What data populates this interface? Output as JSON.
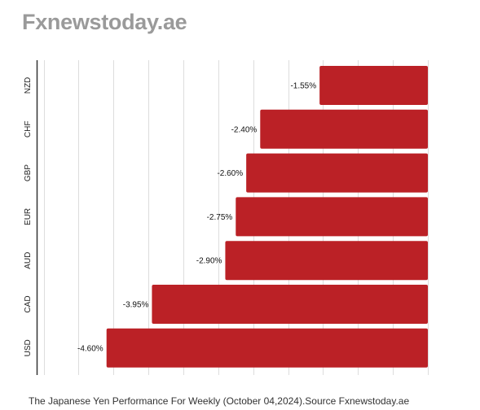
{
  "brand": {
    "title": "Fxnewstoday.ae"
  },
  "caption": "The Japanese Yen Performance For Weekly (October 04,2024).Source Fxnewstoday.ae",
  "colors": {
    "bar": "#bb2126",
    "grid": "#dddddd",
    "axis": "#333333",
    "brand_text": "#9a9a9a"
  },
  "chart_data": {
    "type": "bar",
    "orientation": "horizontal",
    "categories": [
      "NZD",
      "CHF",
      "GBP",
      "EUR",
      "AUD",
      "CAD",
      "USD"
    ],
    "values": [
      -1.55,
      -2.4,
      -2.6,
      -2.75,
      -2.9,
      -3.95,
      -4.6
    ],
    "value_labels": [
      "-1.55%",
      "-2.40%",
      "-2.60%",
      "-2.75%",
      "-2.90%",
      "-3.95%",
      "-4.60%"
    ],
    "xlim": [
      -5.6,
      0
    ],
    "grid": true,
    "legend": "none",
    "title": "",
    "xlabel": "",
    "ylabel": ""
  }
}
